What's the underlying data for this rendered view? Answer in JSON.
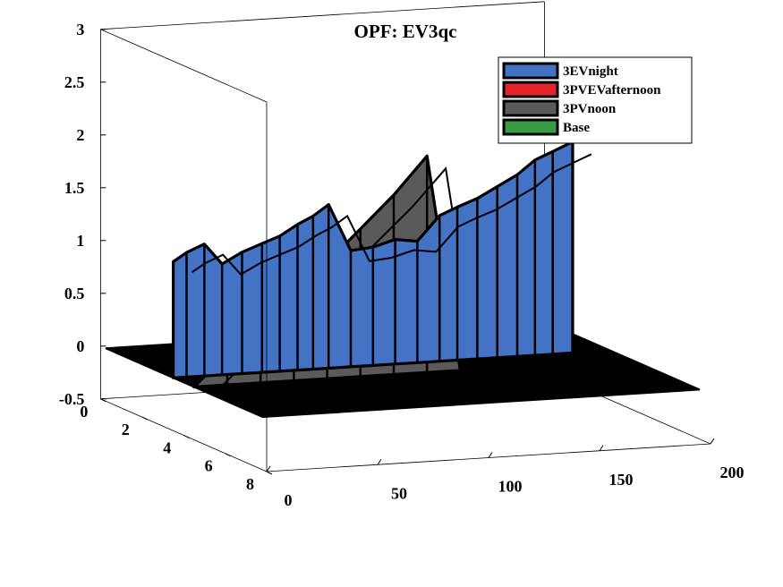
{
  "chart_data": {
    "type": "area",
    "title": "OPF: EV3qc",
    "xlabel": "",
    "ylabel": "",
    "zlabel": "",
    "x_axis": {
      "range": [
        0,
        200
      ],
      "ticks": [
        0,
        50,
        100,
        150,
        200
      ]
    },
    "y_axis": {
      "range": [
        0,
        8
      ],
      "ticks": [
        0,
        2,
        4,
        6,
        8
      ]
    },
    "z_axis": {
      "range": [
        -0.5,
        3
      ],
      "ticks": [
        "-0.5",
        "0",
        "0.5",
        "1",
        "1.5",
        "2",
        "2.5",
        "3"
      ]
    },
    "grid": false,
    "legend_position": "top-right",
    "legend": [
      "3EVnight",
      "3PVEVafternoon",
      "3PVnoon",
      "Base"
    ],
    "colors": {
      "3EVnight": "#4472C4",
      "3PVEVafternoon": "#E3242B",
      "3PVnoon": "#5A5A5A",
      "Base": "#3A9B45"
    },
    "series": [
      {
        "name": "3PVnoon",
        "depth": 3.5,
        "x": [
          0,
          15,
          30,
          45,
          60,
          75,
          90,
          105,
          120,
          135,
          150,
          165,
          180,
          195
        ],
        "values": [
          0,
          0.3,
          0.55,
          0.85,
          1.1,
          1.4,
          1.7,
          2.05,
          0,
          0,
          0,
          0,
          0,
          0
        ]
      },
      {
        "name": "3EVnight",
        "depth": 4.5,
        "x": [
          0,
          6,
          14,
          22,
          31,
          40,
          48,
          56,
          63,
          70,
          80,
          90,
          100,
          110,
          120,
          128,
          137,
          146,
          155,
          163,
          171,
          180
        ],
        "values": [
          1.1,
          1.18,
          1.25,
          1.05,
          1.15,
          1.22,
          1.28,
          1.38,
          1.45,
          1.55,
          1.1,
          1.12,
          1.18,
          1.15,
          1.38,
          1.45,
          1.52,
          1.62,
          1.72,
          1.85,
          1.92,
          2.0
        ]
      }
    ]
  }
}
